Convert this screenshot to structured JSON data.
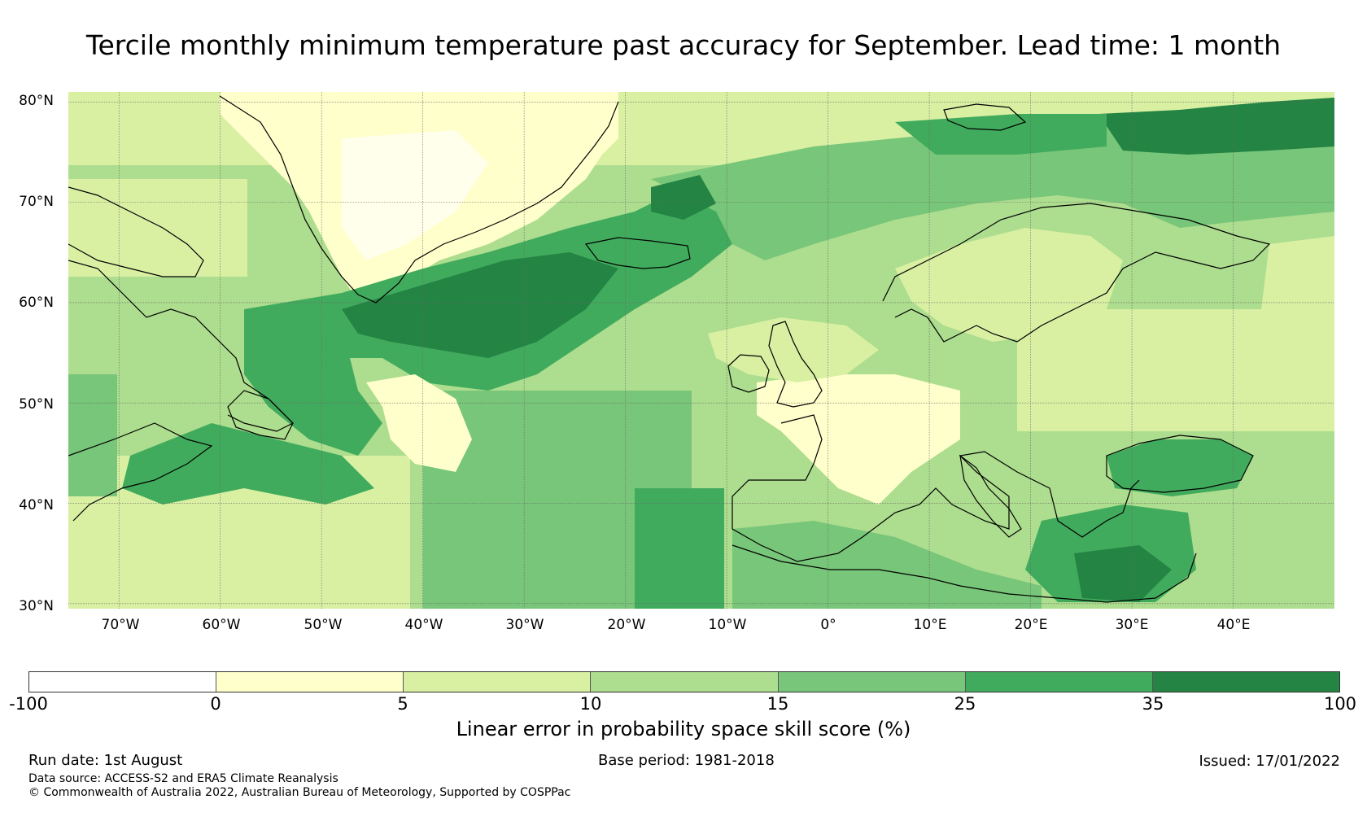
{
  "title": "Tercile monthly minimum temperature past accuracy for September. Lead time: 1 month",
  "map": {
    "lat_labels": [
      "80°N",
      "70°N",
      "60°N",
      "50°N",
      "40°N",
      "30°N"
    ],
    "lon_labels": [
      "70°W",
      "60°W",
      "50°W",
      "40°W",
      "30°W",
      "20°W",
      "10°W",
      "0°",
      "10°E",
      "20°E",
      "30°E",
      "40°E"
    ],
    "lat_values": [
      80,
      70,
      60,
      50,
      40,
      30
    ],
    "lon_values": [
      -70,
      -60,
      -50,
      -40,
      -30,
      -20,
      -10,
      0,
      10,
      20,
      30,
      40
    ],
    "lon_range": [
      -75,
      50
    ],
    "lat_range": [
      29.5,
      81
    ]
  },
  "colorbar": {
    "ticks": [
      "-100",
      "0",
      "5",
      "10",
      "15",
      "25",
      "35",
      "100"
    ],
    "colors": [
      "#ffffff",
      "#ffffcc",
      "#d9f0a3",
      "#addd8e",
      "#78c679",
      "#41ab5d",
      "#238443"
    ],
    "label": "Linear error in probability space skill score (%)"
  },
  "footer": {
    "run_date": "Run date: 1st August",
    "base_period": "Base period: 1981-2018",
    "issued": "Issued: 17/01/2022",
    "data_source": "Data source: ACCESS-S2 and ERA5 Climate Reanalysis",
    "copyright": "© Commonwealth of Australia 2022, Australian Bureau of Meteorology, Supported by COSPPac"
  }
}
